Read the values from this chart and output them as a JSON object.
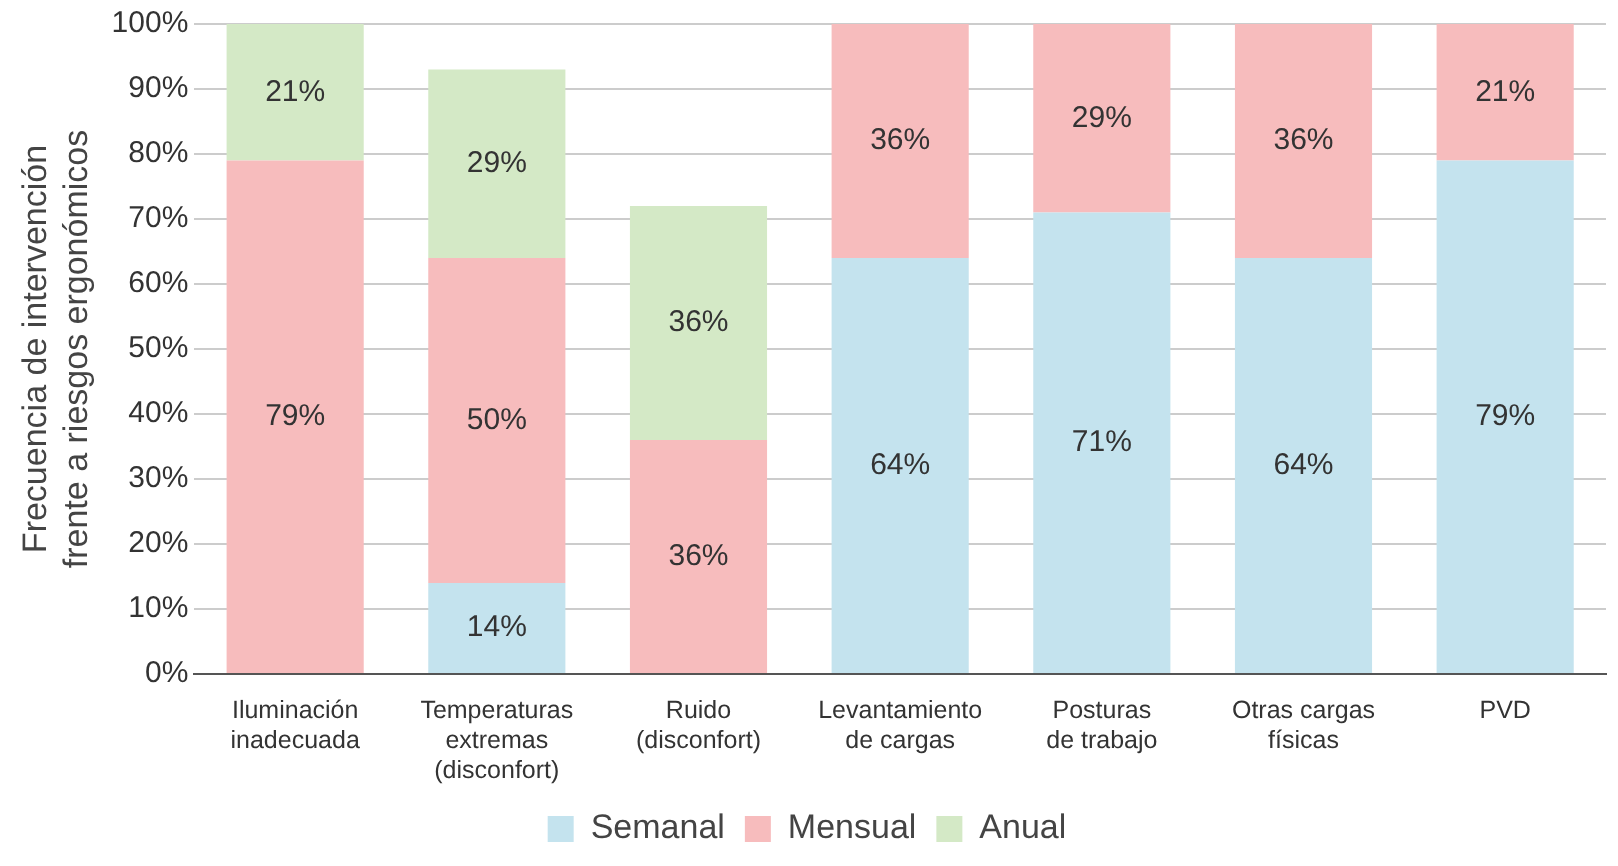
{
  "chart_data": {
    "type": "bar",
    "stacked": true,
    "ylabel": "Frecuencia de intervención\nfrente a riesgos ergonómicos",
    "categories": [
      "Iluminación\ninadecuada",
      "Temperaturas\nextremas\n(disconfort)",
      "Ruido\n(disconfort)",
      "Levantamiento\nde cargas",
      "Posturas\nde trabajo",
      "Otras cargas\nfísicas",
      "PVD"
    ],
    "series": [
      {
        "name": "Semanal",
        "color": "#c4e3ee",
        "values": [
          0,
          14,
          0,
          64,
          71,
          64,
          79
        ],
        "value_labels": [
          null,
          "14%",
          null,
          "64%",
          "71%",
          "64%",
          "79%"
        ]
      },
      {
        "name": "Mensual",
        "color": "#f7bcbd",
        "values": [
          79,
          50,
          36,
          36,
          29,
          36,
          21
        ],
        "value_labels": [
          "79%",
          "50%",
          "36%",
          "36%",
          "29%",
          "36%",
          "21%"
        ]
      },
      {
        "name": "Anual",
        "color": "#d4e9c6",
        "values": [
          21,
          29,
          36,
          0,
          0,
          0,
          0
        ],
        "value_labels": [
          "21%",
          "29%",
          "36%",
          null,
          null,
          null,
          null
        ]
      }
    ],
    "ylim": [
      0,
      100
    ],
    "yticks": [
      {
        "value": 0,
        "label": "0%"
      },
      {
        "value": 10,
        "label": "10%"
      },
      {
        "value": 20,
        "label": "20%"
      },
      {
        "value": 30,
        "label": "30%"
      },
      {
        "value": 40,
        "label": "40%"
      },
      {
        "value": 50,
        "label": "50%"
      },
      {
        "value": 60,
        "label": "60%"
      },
      {
        "value": 70,
        "label": "70%"
      },
      {
        "value": 80,
        "label": "80%"
      },
      {
        "value": 90,
        "label": "90%"
      },
      {
        "value": 100,
        "label": "100%"
      }
    ],
    "grid": "y",
    "legend": "bottom"
  }
}
